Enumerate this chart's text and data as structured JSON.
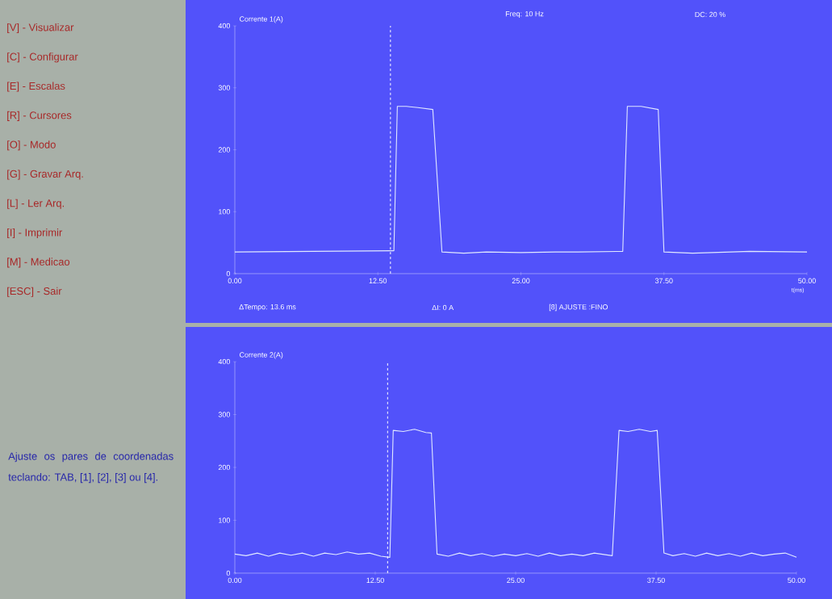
{
  "chart_data": [
    {
      "type": "line",
      "ylabel": "Corrente 1(A)",
      "xlabel": "t(ms)",
      "xlim": [
        0,
        50
      ],
      "ylim": [
        0,
        400
      ],
      "xticks": [
        {
          "value": 0,
          "label": "0.00"
        },
        {
          "value": 12.5,
          "label": "12.50"
        },
        {
          "value": 25,
          "label": "25.00"
        },
        {
          "value": 37.5,
          "label": "37.50"
        },
        {
          "value": 50,
          "label": "50.00"
        }
      ],
      "yticks": [
        0,
        100,
        200,
        300,
        400
      ],
      "series": [
        {
          "color": "#e0e8ff",
          "x": [
            0,
            13.6,
            13.9,
            14.2,
            15,
            16,
            17.3,
            18.1,
            20,
            22,
            25,
            28,
            30,
            33.9,
            34.3,
            35.5,
            37.0,
            37.5,
            40,
            45,
            50
          ],
          "values": [
            35,
            37,
            37,
            270,
            270,
            268,
            265,
            35,
            33,
            35,
            34,
            35,
            35,
            36,
            270,
            270,
            265,
            35,
            33,
            36,
            35
          ]
        }
      ],
      "ref_lines": [
        {
          "axis": "x",
          "value": 13.6,
          "line_style": "dashed",
          "color": "#ffffff"
        }
      ],
      "annotations": [
        "Freq: 10 Hz",
        "DC: 20 %",
        "ΔTempo: 13.6 ms",
        "ΔI: 0 A",
        "[8] AJUSTE :FINO",
        "[V] - Visualizar",
        "[C] - Configurar",
        "[E] - Escalas",
        "[R] - Cursores",
        "[O] - Modo",
        "[G] - Gravar Arq.",
        "[L] - Ler Arq.",
        "[I] - Imprimir",
        "[M] - Medicao",
        "[ESC] - Sair"
      ]
    },
    {
      "type": "line",
      "ylabel": "Corrente 2(A)",
      "xlim": [
        0,
        50
      ],
      "ylim": [
        0,
        400
      ],
      "xticks": [
        {
          "value": 0,
          "label": "0.00"
        },
        {
          "value": 12.5,
          "label": "12.50"
        },
        {
          "value": 25,
          "label": "25.00"
        },
        {
          "value": 37.5,
          "label": "37.50"
        },
        {
          "value": 50,
          "label": "50.00"
        }
      ],
      "yticks": [
        0,
        100,
        200,
        300,
        400
      ],
      "series": [
        {
          "color": "#e0e8ff",
          "x": [
            0,
            1,
            2,
            3,
            4,
            5,
            6,
            7,
            8,
            9,
            10,
            11,
            12,
            13,
            13.8,
            14.1,
            15,
            16,
            17,
            17.5,
            18.0,
            19,
            20,
            21,
            22,
            23,
            24,
            25,
            26,
            27,
            28,
            29,
            30,
            31,
            32,
            33.6,
            34.2,
            35,
            36,
            37,
            37.6,
            38.2,
            39,
            40,
            41,
            42,
            43,
            44,
            45,
            46,
            47,
            48,
            49,
            50
          ],
          "values": [
            36,
            33,
            38,
            32,
            38,
            34,
            38,
            32,
            38,
            35,
            40,
            36,
            38,
            32,
            30,
            270,
            268,
            272,
            266,
            265,
            36,
            32,
            38,
            33,
            37,
            32,
            36,
            33,
            37,
            32,
            38,
            33,
            36,
            33,
            38,
            33,
            270,
            268,
            272,
            268,
            270,
            38,
            33,
            37,
            32,
            38,
            33,
            37,
            32,
            38,
            33,
            36,
            38,
            30
          ]
        }
      ],
      "ref_lines": [
        {
          "axis": "x",
          "value": 13.6,
          "line_style": "dashed",
          "color": "#ffffff"
        }
      ],
      "annotations": [
        "Ajuste os pares de coordenadas teclando: TAB, [1], [2], [3] ou [4]."
      ]
    }
  ]
}
